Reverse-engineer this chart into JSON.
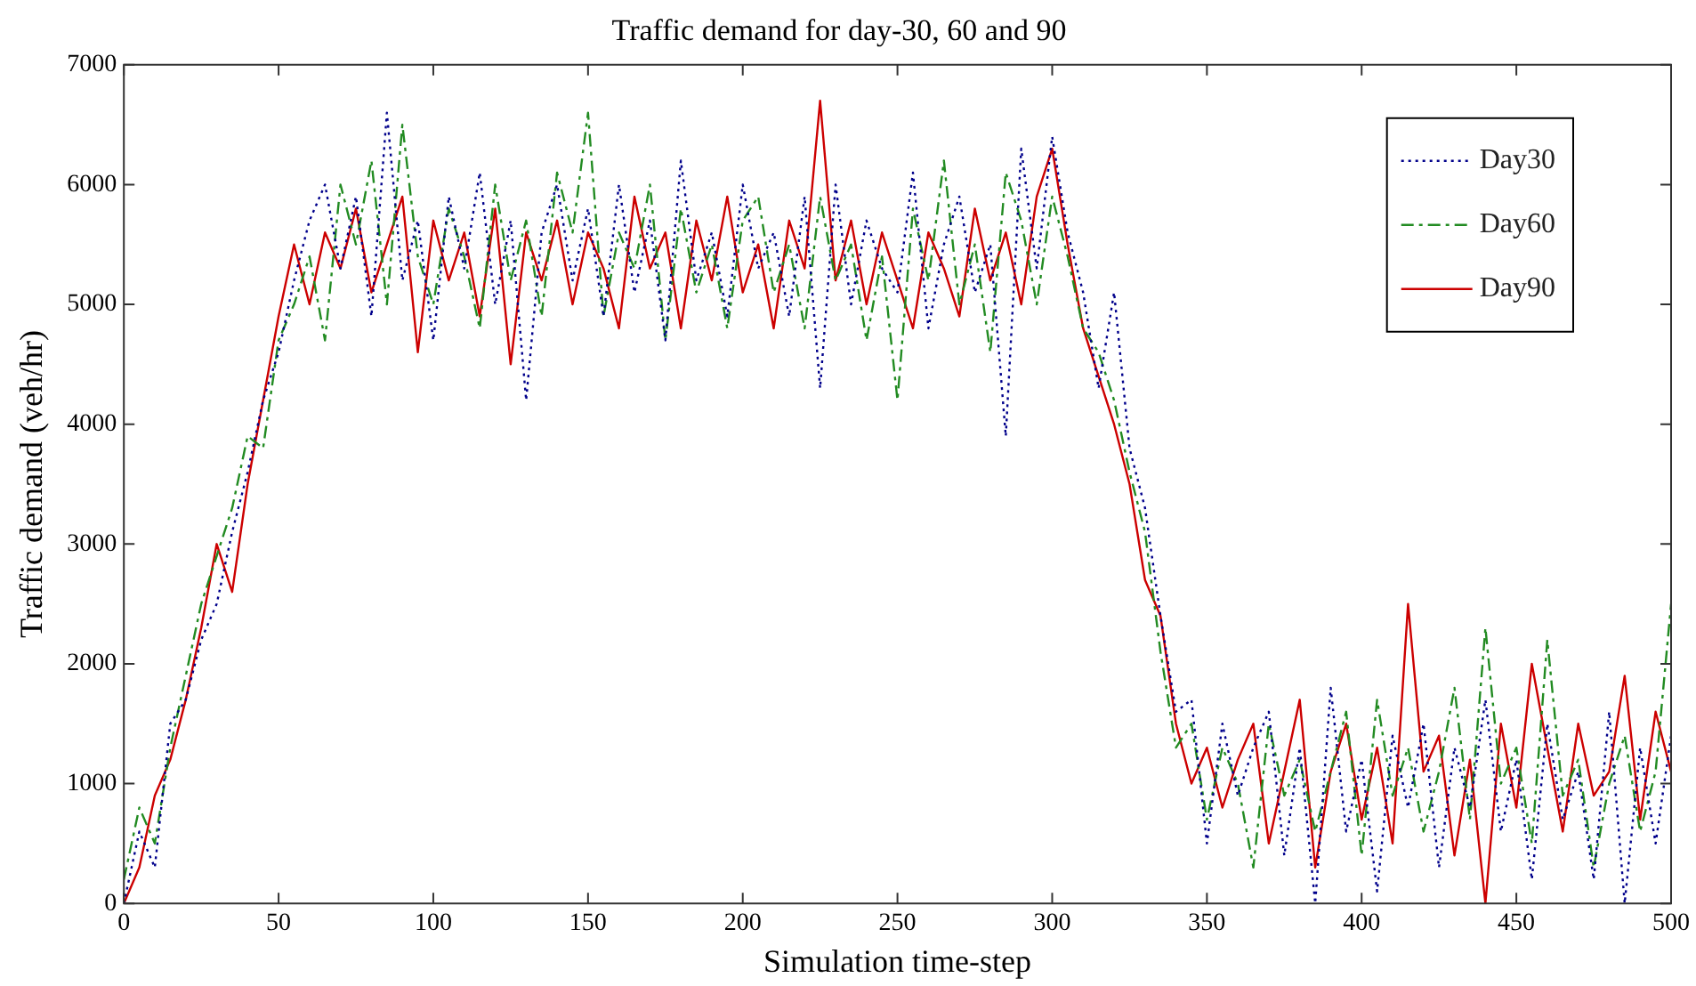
{
  "chart_data": {
    "type": "line",
    "title": "Traffic demand for day-30, 60 and 90",
    "xlabel": "Simulation time-step",
    "ylabel": "Traffic demand (veh/hr)",
    "x": [
      0,
      5,
      10,
      15,
      20,
      25,
      30,
      35,
      40,
      45,
      50,
      55,
      60,
      65,
      70,
      75,
      80,
      85,
      90,
      95,
      100,
      105,
      110,
      115,
      120,
      125,
      130,
      135,
      140,
      145,
      150,
      155,
      160,
      165,
      170,
      175,
      180,
      185,
      190,
      195,
      200,
      205,
      210,
      215,
      220,
      225,
      230,
      235,
      240,
      245,
      250,
      255,
      260,
      265,
      270,
      275,
      280,
      285,
      290,
      295,
      300,
      305,
      310,
      315,
      320,
      325,
      330,
      335,
      340,
      345,
      350,
      355,
      360,
      365,
      370,
      375,
      380,
      385,
      390,
      395,
      400,
      405,
      410,
      415,
      420,
      425,
      430,
      435,
      440,
      445,
      450,
      455,
      460,
      465,
      470,
      475,
      480,
      485,
      490,
      495,
      500
    ],
    "xlim": [
      0,
      500
    ],
    "xticks": [
      0,
      50,
      100,
      150,
      200,
      250,
      300,
      350,
      400,
      450,
      500
    ],
    "ylim": [
      0,
      7000
    ],
    "yticks": [
      0,
      1000,
      2000,
      3000,
      4000,
      5000,
      6000,
      7000
    ],
    "grid": false,
    "legend": "top right",
    "marker": "none",
    "series": [
      {
        "name": "Day30",
        "color": "#00008b",
        "line_style": "dotted",
        "values": [
          0,
          600,
          300,
          1500,
          1700,
          2200,
          2500,
          3100,
          3600,
          4200,
          4600,
          5200,
          5700,
          6000,
          5300,
          5900,
          4900,
          6600,
          5200,
          5700,
          4700,
          5900,
          5300,
          6100,
          5000,
          5700,
          4200,
          5600,
          6000,
          5200,
          5800,
          4900,
          6000,
          5100,
          5700,
          4700,
          6200,
          5200,
          5600,
          4900,
          6000,
          5300,
          5600,
          4900,
          5900,
          4300,
          6000,
          5000,
          5700,
          5300,
          5100,
          6100,
          4800,
          5500,
          5900,
          5100,
          5500,
          3900,
          6300,
          5300,
          6400,
          5600,
          5100,
          4300,
          5100,
          3800,
          3300,
          2400,
          1600,
          1700,
          500,
          1500,
          900,
          1300,
          1600,
          400,
          1300,
          0,
          1800,
          600,
          1200,
          100,
          1400,
          800,
          1500,
          300,
          1300,
          800,
          1700,
          600,
          1200,
          200,
          1500,
          700,
          1100,
          200,
          1600,
          0,
          1300,
          500,
          1400
        ]
      },
      {
        "name": "Day60",
        "color": "#228b22",
        "line_style": "dashed",
        "values": [
          200,
          800,
          500,
          1300,
          1900,
          2500,
          2900,
          3300,
          3900,
          3800,
          4700,
          5000,
          5400,
          4700,
          6000,
          5500,
          6200,
          5000,
          6500,
          5400,
          5000,
          5800,
          5400,
          4800,
          6000,
          5200,
          5700,
          4900,
          6100,
          5600,
          6600,
          4900,
          5600,
          5300,
          6000,
          4700,
          5800,
          5100,
          5500,
          4800,
          5700,
          5900,
          5100,
          5500,
          4800,
          5900,
          5200,
          5500,
          4700,
          5400,
          4200,
          5800,
          5200,
          6200,
          5000,
          5500,
          4600,
          6100,
          5700,
          5000,
          5900,
          5400,
          4800,
          4600,
          4200,
          3600,
          3100,
          2100,
          1300,
          1500,
          700,
          1300,
          1000,
          300,
          1500,
          900,
          1200,
          600,
          1100,
          1600,
          400,
          1700,
          900,
          1300,
          600,
          1100,
          1800,
          700,
          2300,
          1000,
          1300,
          500,
          2200,
          900,
          1200,
          300,
          1000,
          1400,
          600,
          1100,
          2500
        ]
      },
      {
        "name": "Day90",
        "color": "#cc0000",
        "line_style": "solid",
        "values": [
          0,
          300,
          900,
          1200,
          1700,
          2300,
          3000,
          2600,
          3500,
          4200,
          4900,
          5500,
          5000,
          5600,
          5300,
          5800,
          5100,
          5500,
          5900,
          4600,
          5700,
          5200,
          5600,
          4900,
          5800,
          4500,
          5600,
          5200,
          5700,
          5000,
          5600,
          5300,
          4800,
          5900,
          5300,
          5600,
          4800,
          5700,
          5200,
          5900,
          5100,
          5500,
          4800,
          5700,
          5300,
          6700,
          5200,
          5700,
          5000,
          5600,
          5200,
          4800,
          5600,
          5300,
          4900,
          5800,
          5200,
          5600,
          5000,
          5900,
          6300,
          5500,
          4800,
          4400,
          4000,
          3500,
          2700,
          2400,
          1500,
          1000,
          1300,
          800,
          1200,
          1500,
          500,
          1100,
          1700,
          300,
          1100,
          1500,
          700,
          1300,
          500,
          2500,
          1100,
          1400,
          400,
          1200,
          0,
          1500,
          800,
          2000,
          1300,
          600,
          1500,
          900,
          1100,
          1900,
          700,
          1600,
          1100
        ]
      }
    ]
  }
}
